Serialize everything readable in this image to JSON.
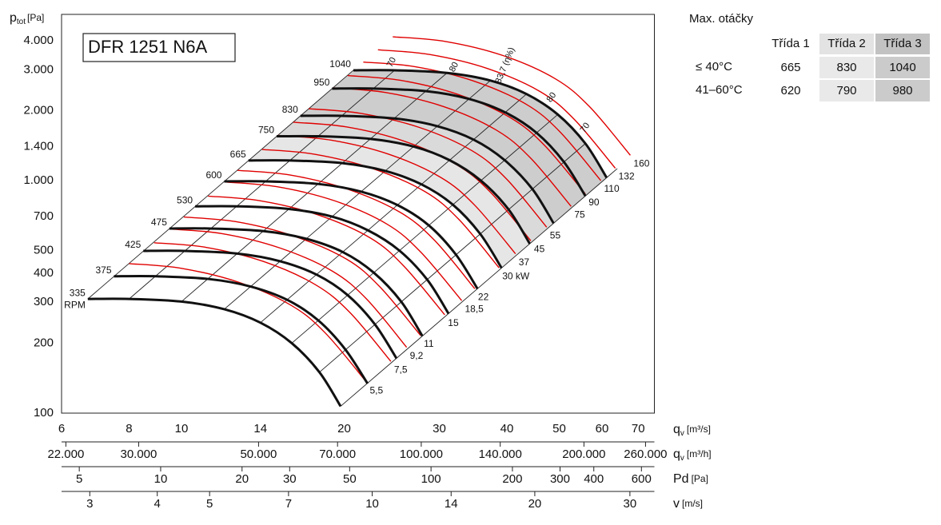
{
  "chart_data": {
    "type": "line",
    "title": "DFR 1251 N6A",
    "y_label": "p",
    "y_label_sub": "tot",
    "y_unit": "[Pa]",
    "x_label": "q",
    "x_label_sub": "v",
    "x_unit": "[m³/s]",
    "x_log": true,
    "y_log": true,
    "grid": true,
    "xlim": [
      6,
      75
    ],
    "ylim": [
      100,
      5200
    ],
    "xticks": [
      6,
      8,
      10,
      14,
      20,
      30,
      40,
      50,
      60,
      70
    ],
    "yticks": [
      100,
      200,
      300,
      400,
      500,
      700,
      {
        "value": 1000,
        "label": "1.000"
      },
      {
        "value": 1400,
        "label": "1.400"
      },
      {
        "value": 2000,
        "label": "2.000"
      },
      {
        "value": 3000,
        "label": "3.000"
      },
      {
        "value": 4000,
        "label": "4.000"
      }
    ],
    "x_minor_grid": [
      7,
      9,
      12,
      16,
      18,
      25,
      35,
      45,
      55,
      65
    ],
    "y_minor_grid": [
      150,
      250,
      350,
      450,
      600,
      800,
      900,
      1100,
      1200,
      1300,
      1600,
      1800,
      2500,
      3500,
      5000
    ],
    "rpm_unit": "RPM",
    "series": [
      {
        "name": "335",
        "color": "#111111",
        "x": [
          6.71,
          8,
          10,
          12,
          14,
          16,
          18,
          19.7
        ],
        "values": [
          310,
          310,
          302,
          280,
          245,
          200,
          150,
          107
        ]
      },
      {
        "name": "375",
        "color": "#111111",
        "x": [
          7.5,
          9.0,
          11.2,
          13.4,
          15.7,
          17.9,
          20.1,
          22.1
        ],
        "values": [
          388,
          388,
          378,
          351,
          307,
          251,
          188,
          134
        ]
      },
      {
        "name": "425",
        "color": "#111111",
        "x": [
          8.5,
          10.1,
          12.7,
          15.2,
          17.8,
          20.3,
          22.8,
          25.0
        ],
        "values": [
          499,
          499,
          486,
          451,
          394,
          322,
          241,
          172
        ]
      },
      {
        "name": "475",
        "color": "#111111",
        "x": [
          9.5,
          11.3,
          14.2,
          17.0,
          19.9,
          22.7,
          25.5,
          27.9
        ],
        "values": [
          623,
          623,
          607,
          563,
          493,
          402,
          302,
          215
        ]
      },
      {
        "name": "530",
        "color": "#111111",
        "x": [
          10.6,
          12.7,
          15.8,
          19.0,
          22.1,
          25.3,
          28.5,
          31.2
        ],
        "values": [
          776,
          776,
          756,
          701,
          613,
          501,
          375,
          268
        ]
      },
      {
        "name": "600",
        "color": "#111111",
        "x": [
          12.0,
          14.3,
          17.9,
          21.5,
          25.1,
          28.7,
          32.2,
          35.3
        ],
        "values": [
          994,
          994,
          969,
          898,
          786,
          642,
          481,
          343
        ]
      },
      {
        "name": "665",
        "color": "#111111",
        "x": [
          13.3,
          15.9,
          19.9,
          23.8,
          27.8,
          31.8,
          35.7,
          39.1
        ],
        "values": [
          1222,
          1222,
          1190,
          1103,
          965,
          788,
          591,
          422
        ]
      },
      {
        "name": "750",
        "color": "#111111",
        "x": [
          15.0,
          17.9,
          22.4,
          26.9,
          31.3,
          35.8,
          40.3,
          44.1
        ],
        "values": [
          1554,
          1554,
          1514,
          1403,
          1228,
          1002,
          752,
          536
        ]
      },
      {
        "name": "830",
        "color": "#111111",
        "x": [
          16.6,
          19.8,
          24.8,
          29.7,
          34.7,
          39.6,
          44.6,
          48.8
        ],
        "values": [
          1903,
          1903,
          1854,
          1719,
          1504,
          1228,
          921,
          657
        ]
      },
      {
        "name": "950",
        "color": "#111111",
        "x": [
          19.0,
          22.7,
          28.4,
          34.0,
          39.7,
          45.4,
          51.0,
          55.9
        ],
        "values": [
          2493,
          2493,
          2429,
          2252,
          1970,
          1608,
          1206,
          860
        ]
      },
      {
        "name": "1040",
        "color": "#111111",
        "x": [
          20.8,
          24.8,
          31.0,
          37.3,
          43.5,
          49.7,
          55.9,
          61.2
        ],
        "values": [
          2988,
          2988,
          2911,
          2699,
          2361,
          1928,
          1446,
          1031
        ]
      }
    ],
    "power_series": [
      {
        "name": "5,5",
        "color": "#e00000",
        "x": [
          8.0,
          10.0,
          12.8,
          16.0,
          18.5,
          22.0
        ],
        "values": [
          440,
          420,
          365,
          290,
          220,
          136
        ]
      },
      {
        "name": "7,5",
        "color": "#e00000",
        "x": [
          8.9,
          11.1,
          14.2,
          17.7,
          20.5,
          24.4
        ],
        "values": [
          541,
          517,
          449,
          357,
          271,
          167
        ]
      },
      {
        "name": "9,2",
        "color": "#e00000",
        "x": [
          9.5,
          11.9,
          15.2,
          19.0,
          22.0,
          26.1
        ],
        "values": [
          620,
          592,
          514,
          409,
          310,
          192
        ]
      },
      {
        "name": "11",
        "color": "#e00000",
        "x": [
          10.1,
          12.6,
          16.1,
          20.2,
          23.3,
          27.7
        ],
        "values": [
          698,
          667,
          579,
          460,
          349,
          216
        ]
      },
      {
        "name": "15",
        "color": "#e00000",
        "x": [
          11.2,
          14.0,
          17.9,
          22.4,
          25.8,
          30.7
        ],
        "values": [
          859,
          820,
          713,
          566,
          429,
          265
        ]
      },
      {
        "name": "18,5",
        "color": "#e00000",
        "x": [
          12.0,
          15.0,
          19.2,
          24.0,
          27.7,
          33.0
        ],
        "values": [
          988,
          943,
          820,
          651,
          494,
          305
        ]
      },
      {
        "name": "22",
        "color": "#e00000",
        "x": [
          12.7,
          15.9,
          20.3,
          25.4,
          29.4,
          34.9
        ],
        "values": [
          1109,
          1058,
          920,
          731,
          554,
          343
        ]
      },
      {
        "name": "30 kW",
        "color": "#e00000",
        "x": [
          14.1,
          17.6,
          22.5,
          28.2,
          32.6,
          38.7
        ],
        "values": [
          1364,
          1302,
          1132,
          899,
          682,
          422
        ]
      },
      {
        "name": "37",
        "color": "#e00000",
        "x": [
          15.1,
          18.9,
          24.2,
          30.2,
          34.9,
          41.5
        ],
        "values": [
          1568,
          1496,
          1300,
          1033,
          784,
          485
        ]
      },
      {
        "name": "45",
        "color": "#e00000",
        "x": [
          16.1,
          20.2,
          25.8,
          32.2,
          37.3,
          44.3
        ],
        "values": [
          1786,
          1705,
          1482,
          1177,
          893,
          552
        ]
      },
      {
        "name": "55",
        "color": "#e00000",
        "x": [
          17.2,
          21.5,
          27.6,
          34.5,
          39.9,
          47.4
        ],
        "values": [
          2042,
          1949,
          1694,
          1346,
          1021,
          631
        ]
      },
      {
        "name": "75",
        "color": "#e00000",
        "x": [
          19.1,
          23.9,
          30.6,
          38.2,
          44.2,
          52.6
        ],
        "values": [
          2511,
          2397,
          2083,
          1655,
          1256,
          776
        ]
      },
      {
        "name": "90",
        "color": "#e00000",
        "x": [
          20.3,
          25.4,
          32.5,
          40.6,
          47.0,
          55.9
        ],
        "values": [
          2836,
          2707,
          2352,
          1869,
          1418,
          877
        ]
      },
      {
        "name": "110",
        "color": "#e00000",
        "x": [
          21.7,
          27.1,
          34.7,
          43.4,
          50.2,
          59.7
        ],
        "values": [
          3242,
          3095,
          2689,
          2137,
          1621,
          1002
        ]
      },
      {
        "name": "132",
        "color": "#e00000",
        "x": [
          23.1,
          28.8,
          36.9,
          46.2,
          53.4,
          63.5
        ],
        "values": [
          3661,
          3494,
          3037,
          2413,
          1830,
          1132
        ]
      },
      {
        "name": "160",
        "color": "#e00000",
        "x": [
          24.6,
          30.8,
          39.4,
          49.2,
          56.9,
          67.7
        ],
        "values": [
          4165,
          3976,
          3455,
          2745,
          2083,
          1287
        ]
      }
    ],
    "efficiency_labels": [
      "70",
      "80",
      "83,7 (η%)",
      "80",
      "70"
    ],
    "secondary_x_axes": [
      {
        "label": "q",
        "label_sub": "v",
        "unit": "[m³/h]",
        "lim": [
          21600,
          270000
        ],
        "ticks": [
          {
            "value": 22000,
            "label": "22.000"
          },
          {
            "value": 30000,
            "label": "30.000"
          },
          {
            "value": 50000,
            "label": "50.000"
          },
          {
            "value": 70000,
            "label": "70.000"
          },
          {
            "value": 100000,
            "label": "100.000"
          },
          {
            "value": 140000,
            "label": "140.000"
          },
          {
            "value": 200000,
            "label": "200.000"
          },
          {
            "value": 260000,
            "label": "260.000"
          }
        ]
      },
      {
        "label": "Pd",
        "unit": "[Pa]",
        "lim": [
          4.3,
          670
        ],
        "ticks": [
          5,
          10,
          20,
          30,
          50,
          100,
          200,
          300,
          400,
          600
        ]
      },
      {
        "label": "v",
        "unit": "[m/s]",
        "lim": [
          2.66,
          33.3
        ],
        "ticks": [
          3,
          4,
          5,
          7,
          10,
          14,
          20,
          30
        ]
      }
    ]
  },
  "table": {
    "title": "Max. otáčky",
    "header": [
      "Třída 1",
      "Třída 2",
      "Třída 3"
    ],
    "rows": [
      {
        "label": "≤ 40°C",
        "values": [
          665,
          830,
          1040
        ]
      },
      {
        "label": "41–60°C",
        "values": [
          620,
          790,
          980
        ]
      }
    ]
  }
}
